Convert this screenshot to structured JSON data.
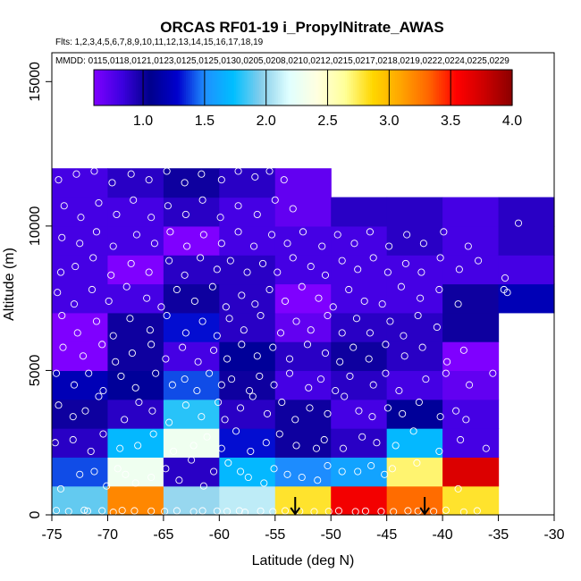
{
  "chart_data": {
    "type": "heatmap",
    "title": "ORCAS RF01-19 i_PropylNitrate_AWAS",
    "flights_label": "Flts: 1,2,3,4,5,6,7,8,9,10,11,12,13,14,15,16,17,18,19",
    "dates_label": "MMDD: 0115,0118,0121,0123,0125,0125,0130,0205,0208,0210,0212,0215,0217,0218,0219,0222,0224,0225,0229",
    "xlabel": "Latitude (deg N)",
    "ylabel": "Altitude (m)",
    "xlim": [
      -75,
      -30
    ],
    "ylim": [
      0,
      16000
    ],
    "xticks": [
      "-75",
      "-70",
      "-65",
      "-60",
      "-55",
      "-50",
      "-45",
      "-40",
      "-35",
      "-30"
    ],
    "xtick_values": [
      -75,
      -70,
      -65,
      -60,
      -55,
      -50,
      -45,
      -40,
      -35,
      -30
    ],
    "yticks": [
      "0",
      "5000",
      "10000",
      "15000"
    ],
    "ytick_values": [
      0,
      5000,
      10000,
      15000
    ],
    "colorbar": {
      "range": [
        0.6,
        4.0
      ],
      "ticks": [
        "1.0",
        "1.5",
        "2.0",
        "2.5",
        "3.0",
        "3.5",
        "4.0"
      ],
      "tick_values": [
        1.0,
        1.5,
        2.0,
        2.5,
        3.0,
        3.5,
        4.0
      ],
      "colors": [
        "#7f00ff",
        "#3d00e0",
        "#00008b",
        "#0000cd",
        "#1e90ff",
        "#00bfff",
        "#87ceeb",
        "#e0ffff",
        "#ffffe0",
        "#ffff99",
        "#ffd700",
        "#ffa500",
        "#ff6600",
        "#ff0000",
        "#cc0000",
        "#8b0000"
      ]
    },
    "lat_edges": [
      -75,
      -70,
      -65,
      -60,
      -55,
      -50,
      -45,
      -40,
      -35,
      -30
    ],
    "alt_edges": [
      0,
      1000,
      2000,
      3000,
      4000,
      5000,
      6000,
      7000,
      8000,
      9000,
      10000,
      11000,
      12000
    ],
    "cells": [
      [
        1.9,
        3.2,
        2.0,
        2.1,
        2.8,
        3.6,
        3.3,
        2.8,
        null
      ],
      [
        1.4,
        2.3,
        0.9,
        1.7,
        1.5,
        1.6,
        2.7,
        3.7,
        null
      ],
      [
        0.9,
        1.7,
        2.3,
        1.3,
        1.0,
        0.9,
        1.7,
        0.8,
        null
      ],
      [
        1.0,
        0.9,
        1.8,
        0.9,
        1.0,
        0.8,
        1.1,
        0.8,
        null
      ],
      [
        1.2,
        1.1,
        1.4,
        1.0,
        0.8,
        0.9,
        0.8,
        0.7,
        null
      ],
      [
        0.6,
        1.0,
        0.8,
        1.1,
        0.9,
        1.0,
        0.9,
        0.6,
        null
      ],
      [
        0.6,
        1.0,
        1.3,
        0.9,
        0.7,
        0.9,
        0.9,
        1.0,
        null
      ],
      [
        0.8,
        0.8,
        1.0,
        0.9,
        0.6,
        0.8,
        0.8,
        1.0,
        1.2
      ],
      [
        0.8,
        0.6,
        0.9,
        0.9,
        0.8,
        0.8,
        0.8,
        0.8,
        0.8
      ],
      [
        0.8,
        0.8,
        0.6,
        0.8,
        0.8,
        0.8,
        0.9,
        0.8,
        0.9
      ],
      [
        0.8,
        0.8,
        0.9,
        0.8,
        0.7,
        0.9,
        0.9,
        0.8,
        0.9
      ],
      [
        0.8,
        0.9,
        1.0,
        0.9,
        0.7,
        null,
        null,
        null,
        null
      ]
    ],
    "points": [
      [
        -74.6,
        150
      ],
      [
        -73.5,
        120
      ],
      [
        -72.1,
        160
      ],
      [
        -71.8,
        130
      ],
      [
        -70.5,
        140
      ],
      [
        -69.5,
        90
      ],
      [
        -68.7,
        150
      ],
      [
        -67.6,
        140
      ],
      [
        -66.1,
        130
      ],
      [
        -64.9,
        120
      ],
      [
        -63.8,
        140
      ],
      [
        -62.3,
        110
      ],
      [
        -61.5,
        140
      ],
      [
        -60.2,
        130
      ],
      [
        -59.3,
        120
      ],
      [
        -58.2,
        140
      ],
      [
        -57.7,
        90
      ],
      [
        -56.3,
        130
      ],
      [
        -55.2,
        110
      ],
      [
        -54.1,
        140
      ],
      [
        -52.8,
        120
      ],
      [
        -51.5,
        110
      ],
      [
        -50.2,
        120
      ],
      [
        -49.3,
        140
      ],
      [
        -47.8,
        110
      ],
      [
        -46.9,
        130
      ],
      [
        -45.5,
        120
      ],
      [
        -44.4,
        110
      ],
      [
        -43.1,
        140
      ],
      [
        -42.2,
        130
      ],
      [
        -40.8,
        120
      ],
      [
        -39.7,
        160
      ],
      [
        -38.1,
        100
      ],
      [
        -36.9,
        140
      ],
      [
        -74.2,
        900
      ],
      [
        -72.5,
        1400
      ],
      [
        -71.2,
        1500
      ],
      [
        -70.1,
        1000
      ],
      [
        -69.1,
        1600
      ],
      [
        -68.4,
        1400
      ],
      [
        -67.5,
        1100
      ],
      [
        -66.1,
        1300
      ],
      [
        -64.8,
        1600
      ],
      [
        -63.6,
        1200
      ],
      [
        -62.5,
        1900
      ],
      [
        -61.4,
        1000
      ],
      [
        -60.5,
        1500
      ],
      [
        -59.2,
        1800
      ],
      [
        -58.1,
        1500
      ],
      [
        -57.4,
        1300
      ],
      [
        -56.0,
        1100
      ],
      [
        -55.1,
        1600
      ],
      [
        -53.9,
        1400
      ],
      [
        -52.6,
        1300
      ],
      [
        -51.2,
        1200
      ],
      [
        -50.3,
        1700
      ],
      [
        -49.0,
        1500
      ],
      [
        -47.6,
        1500
      ],
      [
        -46.4,
        1700
      ],
      [
        -45.2,
        1400
      ],
      [
        -44.5,
        1600
      ],
      [
        -42.3,
        1800
      ],
      [
        -38.6,
        900
      ],
      [
        -74.7,
        2500
      ],
      [
        -73.1,
        2600
      ],
      [
        -71.5,
        2200
      ],
      [
        -70.4,
        2800
      ],
      [
        -68.9,
        2300
      ],
      [
        -67.3,
        2400
      ],
      [
        -65.9,
        2800
      ],
      [
        -64.1,
        2200
      ],
      [
        -62.3,
        2400
      ],
      [
        -61.1,
        2700
      ],
      [
        -59.8,
        2300
      ],
      [
        -58.5,
        2900
      ],
      [
        -57.2,
        2200
      ],
      [
        -55.8,
        2500
      ],
      [
        -54.6,
        2800
      ],
      [
        -53.1,
        2400
      ],
      [
        -51.3,
        2300
      ],
      [
        -50.6,
        2600
      ],
      [
        -48.9,
        2300
      ],
      [
        -47.2,
        2700
      ],
      [
        -45.9,
        2500
      ],
      [
        -44.2,
        2400
      ],
      [
        -42.6,
        2900
      ],
      [
        -40.3,
        2200
      ],
      [
        -38.4,
        2600
      ],
      [
        -36.1,
        2300
      ],
      [
        -74.4,
        3800
      ],
      [
        -73.1,
        3400
      ],
      [
        -72.0,
        3600
      ],
      [
        -70.8,
        4100
      ],
      [
        -68.5,
        3300
      ],
      [
        -67.2,
        3900
      ],
      [
        -66.0,
        3600
      ],
      [
        -64.5,
        3200
      ],
      [
        -63.0,
        3800
      ],
      [
        -61.6,
        3400
      ],
      [
        -60.1,
        3900
      ],
      [
        -59.5,
        3300
      ],
      [
        -58.1,
        3700
      ],
      [
        -57.0,
        4100
      ],
      [
        -55.7,
        3500
      ],
      [
        -54.4,
        3900
      ],
      [
        -53.2,
        3300
      ],
      [
        -51.9,
        3700
      ],
      [
        -50.3,
        3500
      ],
      [
        -48.8,
        4100
      ],
      [
        -47.5,
        3600
      ],
      [
        -46.3,
        3400
      ],
      [
        -44.9,
        3700
      ],
      [
        -43.6,
        3500
      ],
      [
        -42.1,
        3900
      ],
      [
        -40.2,
        3400
      ],
      [
        -38.8,
        3600
      ],
      [
        -37.9,
        3300
      ],
      [
        -74.6,
        4900
      ],
      [
        -73.0,
        4500
      ],
      [
        -71.7,
        4900
      ],
      [
        -70.4,
        4300
      ],
      [
        -68.8,
        4800
      ],
      [
        -67.5,
        4400
      ],
      [
        -65.7,
        4900
      ],
      [
        -64.2,
        4500
      ],
      [
        -63.1,
        4700
      ],
      [
        -62.0,
        4300
      ],
      [
        -60.9,
        4900
      ],
      [
        -59.8,
        4500
      ],
      [
        -58.9,
        4700
      ],
      [
        -57.3,
        4300
      ],
      [
        -56.4,
        4800
      ],
      [
        -55.1,
        4500
      ],
      [
        -53.7,
        4900
      ],
      [
        -52.0,
        4400
      ],
      [
        -50.9,
        4700
      ],
      [
        -49.6,
        4300
      ],
      [
        -48.3,
        4800
      ],
      [
        -46.2,
        4500
      ],
      [
        -45.1,
        4900
      ],
      [
        -43.9,
        4300
      ],
      [
        -41.5,
        4700
      ],
      [
        -39.7,
        4900
      ],
      [
        -37.6,
        4500
      ],
      [
        -35.5,
        4900
      ],
      [
        -74.0,
        5800
      ],
      [
        -72.2,
        5500
      ],
      [
        -70.5,
        5900
      ],
      [
        -69.3,
        5300
      ],
      [
        -67.8,
        5600
      ],
      [
        -66.1,
        5900
      ],
      [
        -64.8,
        5400
      ],
      [
        -63.3,
        5800
      ],
      [
        -61.9,
        5300
      ],
      [
        -60.5,
        5700
      ],
      [
        -59.3,
        5400
      ],
      [
        -58.0,
        5900
      ],
      [
        -56.6,
        5500
      ],
      [
        -55.2,
        5800
      ],
      [
        -53.7,
        5400
      ],
      [
        -52.1,
        5900
      ],
      [
        -50.5,
        5600
      ],
      [
        -49.2,
        5300
      ],
      [
        -48.0,
        5800
      ],
      [
        -46.6,
        5400
      ],
      [
        -45.1,
        5900
      ],
      [
        -43.4,
        5500
      ],
      [
        -41.8,
        5800
      ],
      [
        -39.6,
        5300
      ],
      [
        -38.1,
        5700
      ],
      [
        -74.1,
        6900
      ],
      [
        -72.7,
        6300
      ],
      [
        -71.0,
        6700
      ],
      [
        -69.5,
        6200
      ],
      [
        -68.0,
        6800
      ],
      [
        -66.2,
        6400
      ],
      [
        -64.7,
        6900
      ],
      [
        -63.0,
        6300
      ],
      [
        -61.5,
        6700
      ],
      [
        -60.2,
        6200
      ],
      [
        -59.1,
        6800
      ],
      [
        -57.8,
        6400
      ],
      [
        -56.3,
        6900
      ],
      [
        -54.5,
        6300
      ],
      [
        -53.1,
        6700
      ],
      [
        -51.8,
        6400
      ],
      [
        -50.3,
        6900
      ],
      [
        -49.0,
        6300
      ],
      [
        -47.7,
        6800
      ],
      [
        -46.5,
        6300
      ],
      [
        -44.7,
        6700
      ],
      [
        -43.5,
        6200
      ],
      [
        -42.2,
        6900
      ],
      [
        -40.5,
        6500
      ],
      [
        -74.5,
        7700
      ],
      [
        -73.0,
        7300
      ],
      [
        -71.4,
        7800
      ],
      [
        -69.9,
        7400
      ],
      [
        -68.3,
        7900
      ],
      [
        -66.5,
        7500
      ],
      [
        -65.2,
        7200
      ],
      [
        -63.8,
        7800
      ],
      [
        -62.2,
        7400
      ],
      [
        -60.6,
        7900
      ],
      [
        -59.4,
        7200
      ],
      [
        -58.0,
        7600
      ],
      [
        -56.8,
        7300
      ],
      [
        -55.5,
        7800
      ],
      [
        -54.1,
        7400
      ],
      [
        -52.6,
        7900
      ],
      [
        -51.1,
        7500
      ],
      [
        -49.8,
        7200
      ],
      [
        -48.4,
        7800
      ],
      [
        -47.0,
        7400
      ],
      [
        -45.4,
        7300
      ],
      [
        -43.7,
        7900
      ],
      [
        -42.0,
        7500
      ],
      [
        -40.3,
        7800
      ],
      [
        -38.6,
        7300
      ],
      [
        -34.5,
        7800
      ],
      [
        -34.2,
        7700
      ],
      [
        -74.2,
        8400
      ],
      [
        -72.9,
        8600
      ],
      [
        -71.3,
        8900
      ],
      [
        -69.7,
        8300
      ],
      [
        -67.9,
        8700
      ],
      [
        -66.3,
        8400
      ],
      [
        -64.5,
        8800
      ],
      [
        -63.1,
        8300
      ],
      [
        -61.7,
        8900
      ],
      [
        -60.2,
        8500
      ],
      [
        -59.0,
        8800
      ],
      [
        -57.5,
        8400
      ],
      [
        -56.1,
        8700
      ],
      [
        -54.8,
        8400
      ],
      [
        -53.4,
        8900
      ],
      [
        -51.8,
        8600
      ],
      [
        -50.5,
        8300
      ],
      [
        -49.0,
        8800
      ],
      [
        -47.6,
        8500
      ],
      [
        -46.2,
        8900
      ],
      [
        -44.9,
        8400
      ],
      [
        -43.3,
        8700
      ],
      [
        -41.9,
        8400
      ],
      [
        -40.2,
        8900
      ],
      [
        -38.5,
        8500
      ],
      [
        -36.8,
        8800
      ],
      [
        -34.4,
        8200
      ],
      [
        -74.1,
        9600
      ],
      [
        -72.5,
        9400
      ],
      [
        -71.0,
        9800
      ],
      [
        -69.5,
        9300
      ],
      [
        -67.4,
        9700
      ],
      [
        -65.8,
        9400
      ],
      [
        -64.4,
        9800
      ],
      [
        -62.9,
        9300
      ],
      [
        -61.4,
        9700
      ],
      [
        -59.8,
        9400
      ],
      [
        -58.3,
        9800
      ],
      [
        -56.9,
        9300
      ],
      [
        -55.3,
        9700
      ],
      [
        -53.9,
        9400
      ],
      [
        -52.5,
        9800
      ],
      [
        -50.8,
        9300
      ],
      [
        -49.4,
        9700
      ],
      [
        -47.9,
        9400
      ],
      [
        -46.5,
        9800
      ],
      [
        -44.8,
        9300
      ],
      [
        -43.2,
        9700
      ],
      [
        -41.7,
        9400
      ],
      [
        -39.9,
        9800
      ],
      [
        -37.7,
        9300
      ],
      [
        -33.2,
        10100
      ],
      [
        -73.9,
        10700
      ],
      [
        -72.4,
        10300
      ],
      [
        -70.8,
        10800
      ],
      [
        -69.2,
        10400
      ],
      [
        -67.7,
        10900
      ],
      [
        -66.1,
        10300
      ],
      [
        -64.6,
        10700
      ],
      [
        -63.0,
        10400
      ],
      [
        -61.5,
        10900
      ],
      [
        -59.9,
        10300
      ],
      [
        -58.3,
        10700
      ],
      [
        -56.6,
        10400
      ],
      [
        -55.0,
        10900
      ],
      [
        -53.4,
        10600
      ],
      [
        -74.4,
        11600
      ],
      [
        -72.8,
        11800
      ],
      [
        -71.2,
        11900
      ],
      [
        -69.6,
        11500
      ],
      [
        -67.9,
        11800
      ],
      [
        -66.3,
        11600
      ],
      [
        -64.7,
        11900
      ],
      [
        -63.1,
        11500
      ],
      [
        -61.6,
        11800
      ],
      [
        -59.8,
        11600
      ],
      [
        -58.3,
        11900
      ],
      [
        -56.8,
        11700
      ],
      [
        -55.5,
        11900
      ],
      [
        -54.2,
        11600
      ]
    ],
    "arrows": [
      -53.2,
      -41.6
    ]
  }
}
